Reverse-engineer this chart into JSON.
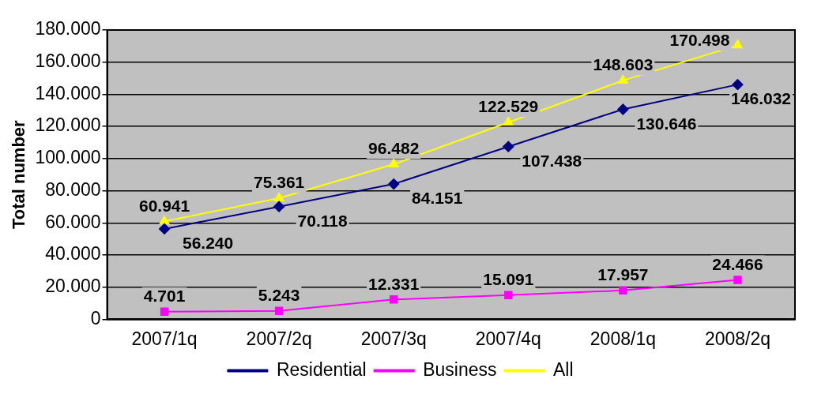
{
  "chart_data": {
    "type": "line",
    "ylabel": "Total number",
    "categories": [
      "2007/1q",
      "2007/2q",
      "2007/3q",
      "2007/4q",
      "2008/1q",
      "2008/2q"
    ],
    "series": [
      {
        "name": "Residential",
        "color": "#000080",
        "marker": "diamond",
        "values": [
          56240,
          70118,
          84151,
          107438,
          130646,
          146032
        ],
        "value_labels": [
          "56.240",
          "70.118",
          "84.151",
          "107.438",
          "130.646",
          "146.032"
        ]
      },
      {
        "name": "Business",
        "color": "#ff00ff",
        "marker": "square",
        "values": [
          4701,
          5243,
          12331,
          15091,
          17957,
          24466
        ],
        "value_labels": [
          "4.701",
          "5.243",
          "12.331",
          "15.091",
          "17.957",
          "24.466"
        ]
      },
      {
        "name": "All",
        "color": "#ffff00",
        "marker": "triangle",
        "values": [
          60941,
          75361,
          96482,
          122529,
          148603,
          170498
        ],
        "value_labels": [
          "60.941",
          "75.361",
          "96.482",
          "122.529",
          "148.603",
          "170.498"
        ]
      }
    ],
    "ylim": [
      0,
      180000
    ],
    "yticks": [
      0,
      {
        "value": 20000,
        "label": "20.000"
      },
      {
        "value": 40000,
        "label": "40.000"
      },
      {
        "value": 60000,
        "label": "60.000"
      },
      {
        "value": 80000,
        "label": "80.000"
      },
      {
        "value": 100000,
        "label": "100.000"
      },
      {
        "value": 120000,
        "label": "120.000"
      },
      {
        "value": 140000,
        "label": "140.000"
      },
      {
        "value": 160000,
        "label": "160.000"
      },
      {
        "value": 180000,
        "label": "180.000"
      }
    ],
    "grid": "y",
    "legend": "bottom"
  }
}
